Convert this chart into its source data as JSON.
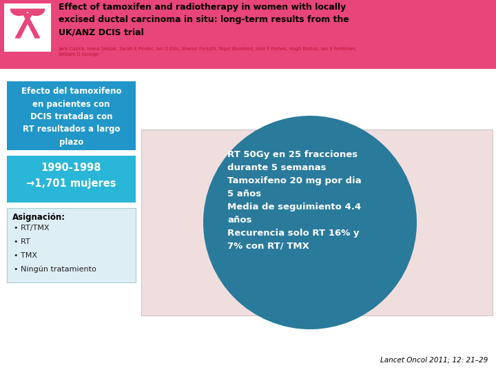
{
  "bg_color": "#ffffff",
  "header_bg": "#e8457a",
  "header_title_lines": [
    "Effect of tamoxifen and radiotherapy in women with locally",
    "excised ductal carcinoma in situ: long-term results from the",
    "UK/ANZ DCIS trial"
  ],
  "header_authors": "Jack Cuzick, Ivana Sestak, Sarah E Pinder, Ian O Ellis, Sharon Forsyth, Nigel JBundred, Iohn F Forbes, Hugh Bishoo, Ian S Fentiman,\nWilliam D George",
  "left_title_box_color": "#2196C8",
  "left_title_text": "Efecto del tamoxifeno\nen pacientes con\nDCIS tratadas con\nRT resultados a largo\nplazo",
  "left_years_box_color": "#29B6D8",
  "left_years_text": "1990-1998\n→1,701 mujeres",
  "left_assign_box_color": "#ddeef5",
  "left_assign_title": "Asignación:",
  "left_assign_items": [
    "• RT/TMX",
    "• RT",
    "• TMX",
    "• Ningún tratamiento"
  ],
  "circle_color": "#2a7a9b",
  "circle_text": "RT 50Gy en 25 fracciones\ndurante 5 semanas\nTamoxifeno 20 mg por dia\n5 años\nMedia de seguimiento 4.4\naños\nRecurencia solo RT 16% y\n7% con RT/ TMX",
  "table_bg": "#f0dede",
  "citation": "Lancet Oncol 2011; 12: 21–29",
  "ribbon_color": "#e8457a"
}
